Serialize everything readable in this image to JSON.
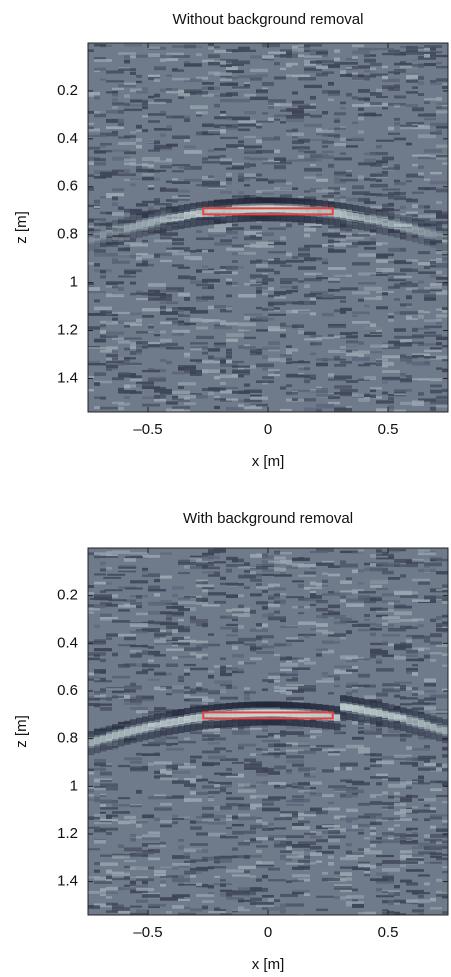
{
  "chart_data": [
    {
      "type": "heatmap",
      "title": "Without background removal",
      "xlabel": "x [m]",
      "ylabel": "z [m]",
      "xlim": [
        -0.75,
        0.75
      ],
      "ylim": [
        0,
        1.54
      ],
      "y_inverted": true,
      "xticks": [
        {
          "value": -0.5,
          "label": "–0.5"
        },
        0,
        0.5
      ],
      "yticks": [
        0.2,
        0.4,
        0.6,
        0.8,
        1,
        1.2,
        1.4
      ],
      "target": {
        "color": "#e8423f",
        "x": [
          -0.27,
          0.27
        ],
        "z": [
          0.69,
          0.715
        ]
      }
    },
    {
      "type": "heatmap",
      "title": "With background removal",
      "xlabel": "x [m]",
      "ylabel": "z [m]",
      "xlim": [
        -0.75,
        0.75
      ],
      "ylim": [
        0,
        1.54
      ],
      "y_inverted": true,
      "xticks": [
        {
          "value": -0.5,
          "label": "–0.5"
        },
        0,
        0.5
      ],
      "yticks": [
        0.2,
        0.4,
        0.6,
        0.8,
        1,
        1.2,
        1.4
      ],
      "target": {
        "color": "#e8423f",
        "x": [
          -0.27,
          0.27
        ],
        "z": [
          0.69,
          0.715
        ]
      }
    }
  ]
}
